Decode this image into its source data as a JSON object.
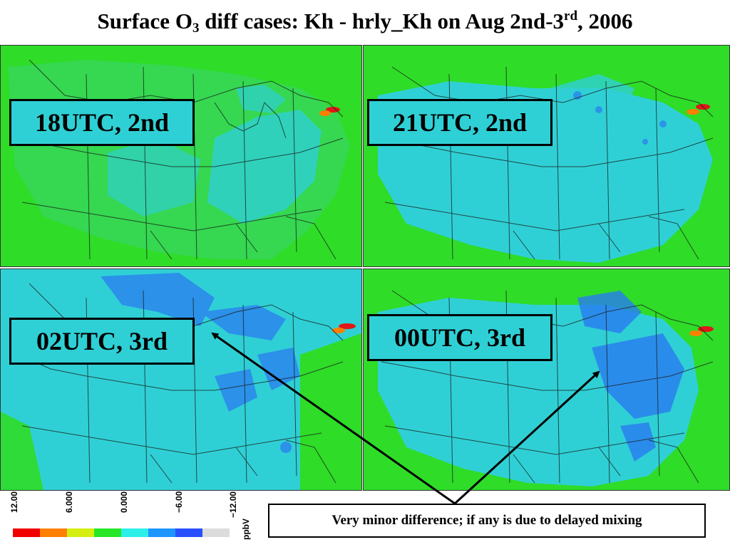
{
  "title": {
    "prefix": "Surface O",
    "sub": "3",
    "middle": " diff cases: Kh - hrly_Kh on Aug 2nd-3",
    "sup": "rd",
    "suffix": ", 2006"
  },
  "panels": [
    {
      "label": "18UTC, 2nd"
    },
    {
      "label": "21UTC, 2nd"
    },
    {
      "label": "02UTC, 3rd"
    },
    {
      "label": "00UTC, 3rd"
    }
  ],
  "note": "Very minor difference; if any is due to delayed mixing",
  "colorbar": {
    "ticks": [
      "12.00",
      "6.000",
      "0.000",
      "−6.00",
      "−12.00"
    ],
    "unit": "ppbV",
    "colors": [
      "#f00000",
      "#ff8000",
      "#d4ee10",
      "#28e628",
      "#2cf0e8",
      "#1e96ff",
      "#2850ff",
      "#dcdcdc"
    ]
  },
  "colors": {
    "land_green": "#2fdc28",
    "ocean_green": "#7fe030",
    "cyan": "#2fd0d5",
    "blue_patch": "#2a7cf0",
    "red_hotspot": "#e01818"
  }
}
